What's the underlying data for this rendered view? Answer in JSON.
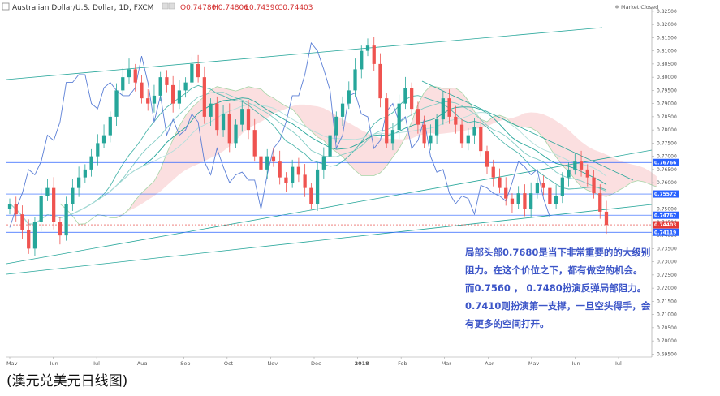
{
  "header": {
    "title": "Australian Dollar/U.S. Dollar, 1D, FXCM",
    "open": "O0.74780",
    "high": "H0.74806",
    "low": "L0.74390",
    "close": "C0.74403",
    "status": "Market Closed"
  },
  "caption": "(澳元兑美元日线图)",
  "annotation": [
    "局部头部0.7680是当下非常重要的的大级别",
    "阻力。在这个价位之下，都有做空的机会。",
    "而0.7560 ， 0.7480扮演反弹局部阻力。",
    "0.7410则扮演第一支撑，一旦空头得手，会",
    "有更多的空间打开。"
  ],
  "chart_data": {
    "type": "candlestick",
    "symbol": "Australian Dollar/U.S. Dollar",
    "interval": "1D",
    "source": "FXCM",
    "y_ticks": [
      "0.82500",
      "0.82000",
      "0.81500",
      "0.81000",
      "0.80500",
      "0.80000",
      "0.79500",
      "0.79000",
      "0.78500",
      "0.78000",
      "0.77500",
      "0.77000",
      "0.76500",
      "0.76000",
      "0.75500",
      "0.75000",
      "0.74500",
      "0.74000",
      "0.73500",
      "0.73000",
      "0.72500",
      "0.72000",
      "0.71500",
      "0.71000",
      "0.70500",
      "0.70000",
      "0.69500"
    ],
    "ylim": [
      0.6945,
      0.8262
    ],
    "x_ticks": [
      "May",
      "Jun",
      "Jul",
      "Aug",
      "Sep",
      "Oct",
      "Nov",
      "Dec",
      "2018",
      "Feb",
      "Mar",
      "Apr",
      "May",
      "Jun",
      "Jul"
    ],
    "price_labels": [
      {
        "text": "0.76766",
        "value": 0.76766,
        "color": "#2962ff"
      },
      {
        "text": "0.75572",
        "value": 0.75572,
        "color": "#2962ff"
      },
      {
        "text": "0.74767",
        "value": 0.74767,
        "color": "#2962ff"
      },
      {
        "text": "0.74403",
        "value": 0.74403,
        "color": "#e53935"
      },
      {
        "text": "0.74119",
        "value": 0.74119,
        "color": "#2962ff"
      }
    ],
    "horizontal_levels": [
      0.76766,
      0.75572,
      0.74767,
      0.74119
    ],
    "last_close": 0.74403,
    "close_path": [
      0.752,
      0.748,
      0.742,
      0.735,
      0.745,
      0.755,
      0.758,
      0.745,
      0.74,
      0.752,
      0.758,
      0.762,
      0.765,
      0.77,
      0.775,
      0.778,
      0.785,
      0.795,
      0.8,
      0.803,
      0.798,
      0.792,
      0.79,
      0.793,
      0.8,
      0.797,
      0.79,
      0.795,
      0.798,
      0.805,
      0.8,
      0.785,
      0.79,
      0.78,
      0.786,
      0.775,
      0.782,
      0.788,
      0.78,
      0.77,
      0.765,
      0.77,
      0.768,
      0.762,
      0.76,
      0.766,
      0.763,
      0.758,
      0.752,
      0.765,
      0.77,
      0.778,
      0.785,
      0.79,
      0.795,
      0.803,
      0.81,
      0.812,
      0.805,
      0.792,
      0.775,
      0.78,
      0.79,
      0.796,
      0.788,
      0.782,
      0.775,
      0.778,
      0.784,
      0.792,
      0.785,
      0.782,
      0.775,
      0.778,
      0.781,
      0.772,
      0.766,
      0.762,
      0.758,
      0.754,
      0.752,
      0.756,
      0.75,
      0.756,
      0.76,
      0.758,
      0.752,
      0.755,
      0.762,
      0.765,
      0.768,
      0.765,
      0.762,
      0.756,
      0.749,
      0.744
    ],
    "series": [
      {
        "name": "AUD/USD daily candles",
        "color_up": "#26a69a",
        "color_down": "#ef5350"
      }
    ]
  }
}
